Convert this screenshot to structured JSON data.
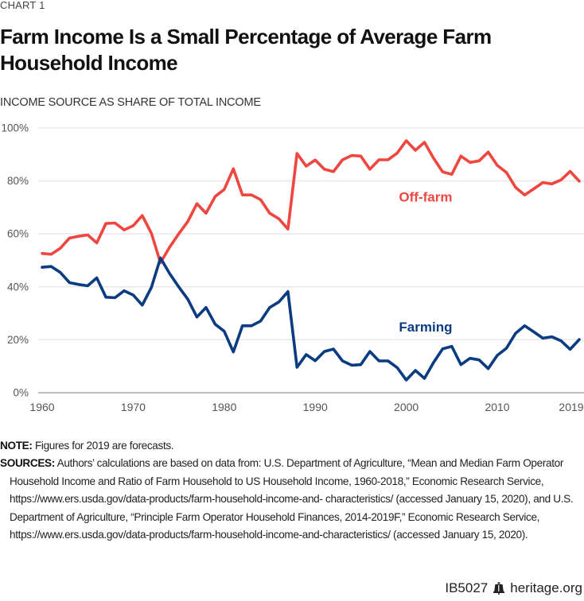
{
  "header": {
    "kicker": "CHART 1",
    "title": "Farm Income Is a Small Percentage of Average Farm Household Income",
    "subtitle": "INCOME SOURCE AS SHARE OF TOTAL INCOME"
  },
  "colors": {
    "off_farm": "#ef4640",
    "farming": "#0b3b80",
    "grid": "#e6e6e6",
    "axis": "#999999",
    "tick_text": "#555555"
  },
  "chart_data": {
    "type": "line",
    "title": "Farm Income Is a Small Percentage of Average Farm Household Income",
    "ylabel": "INCOME SOURCE AS SHARE OF TOTAL INCOME",
    "xlabel": "",
    "xlim": [
      1960,
      2019
    ],
    "ylim": [
      0,
      100
    ],
    "grid": true,
    "x_ticks": [
      1960,
      1970,
      1980,
      1990,
      2000,
      2010,
      2019
    ],
    "x_tick_labels": [
      "1960",
      "1970",
      "1980",
      "1990",
      "2000",
      "2010",
      "2019"
    ],
    "y_ticks": [
      0,
      20,
      40,
      60,
      80,
      100
    ],
    "y_tick_labels": [
      "0%",
      "20%",
      "40%",
      "60%",
      "80%",
      "100%"
    ],
    "x": [
      1960,
      1961,
      1962,
      1963,
      1964,
      1965,
      1966,
      1967,
      1968,
      1969,
      1970,
      1971,
      1972,
      1973,
      1974,
      1975,
      1976,
      1977,
      1978,
      1979,
      1980,
      1981,
      1982,
      1983,
      1984,
      1985,
      1986,
      1987,
      1988,
      1989,
      1990,
      1991,
      1992,
      1993,
      1994,
      1995,
      1996,
      1997,
      1998,
      1999,
      2000,
      2001,
      2002,
      2003,
      2004,
      2005,
      2006,
      2007,
      2008,
      2009,
      2010,
      2011,
      2012,
      2013,
      2014,
      2015,
      2016,
      2017,
      2018,
      2019
    ],
    "series": [
      {
        "name": "Off-farm",
        "label": "Off-farm",
        "values": [
          52.6,
          52.3,
          54.6,
          58.4,
          59.1,
          59.6,
          56.6,
          63.9,
          64.1,
          61.5,
          63.1,
          66.9,
          60.2,
          49.1,
          55.0,
          60.0,
          64.7,
          71.4,
          67.8,
          74.1,
          76.8,
          84.6,
          74.7,
          74.7,
          72.9,
          67.8,
          65.7,
          61.8,
          90.4,
          85.6,
          87.9,
          84.4,
          83.5,
          88.0,
          89.6,
          89.4,
          84.4,
          88.0,
          88.0,
          90.5,
          95.2,
          91.6,
          94.6,
          88.6,
          83.4,
          82.5,
          89.4,
          87.0,
          87.6,
          90.9,
          85.9,
          83.2,
          77.6,
          74.7,
          77.0,
          79.4,
          78.9,
          80.4,
          83.6,
          79.9
        ]
      },
      {
        "name": "Farming",
        "label": "Farming",
        "values": [
          47.4,
          47.7,
          45.4,
          41.6,
          40.9,
          40.4,
          43.4,
          36.1,
          35.9,
          38.5,
          36.9,
          33.1,
          39.8,
          50.9,
          45.0,
          40.0,
          35.3,
          28.6,
          32.2,
          25.9,
          23.2,
          15.4,
          25.3,
          25.3,
          27.1,
          32.2,
          34.3,
          38.2,
          9.6,
          14.4,
          12.1,
          15.6,
          16.5,
          12.0,
          10.4,
          10.6,
          15.6,
          12.0,
          12.0,
          9.5,
          4.8,
          8.4,
          5.4,
          11.4,
          16.6,
          17.5,
          10.6,
          13.0,
          12.4,
          9.1,
          14.1,
          16.8,
          22.4,
          25.3,
          23.0,
          20.6,
          21.1,
          19.6,
          16.4,
          20.1
        ]
      }
    ],
    "annotations": [
      {
        "text": "Off-farm",
        "series": "Off-farm",
        "x": 2003,
        "y": 74
      },
      {
        "text": "Farming",
        "series": "Farming",
        "x": 2003,
        "y": 25
      }
    ],
    "legend": "inline-labels"
  },
  "notes": {
    "note_label": "NOTE:",
    "note_text": " Figures for 2019 are forecasts.",
    "sources_label": "SOURCES:",
    "sources_text": " Authors’ calculations are based on data from: U.S. Department of Agriculture, “Mean and Median Farm Operator Household Income and Ratio of Farm Household to US Household Income, 1960-2018,” Economic Research Service, https://www.ers.usda.gov/data-products/farm-household-income-and- characteristics/ (accessed January 15, 2020), and U.S. Department of Agriculture, “Principle Farm Operator Household Finances, 2014-2019F,” Economic Research Service, https://www.ers.usda.gov/data-products/farm-household-income-and-characteristics/ (accessed January 15, 2020)."
  },
  "footer": {
    "code": "IB5027",
    "icon": "liberty-bell-icon",
    "site": "heritage.org"
  }
}
